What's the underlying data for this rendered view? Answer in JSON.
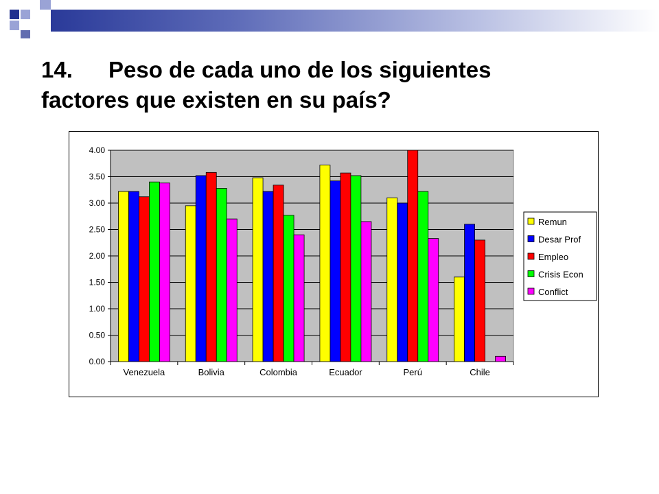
{
  "slide": {
    "title_number": "14.",
    "title_line1": "Peso de cada uno de los siguientes",
    "title_line2": "factores que existen en su país?"
  },
  "colors": {
    "accent_dark": "#1f2f8f",
    "accent_light": "#9aa3d6",
    "plot_background": "#c0c0c0"
  },
  "chart_data": {
    "type": "bar",
    "categories": [
      "Venezuela",
      "Bolivia",
      "Colombia",
      "Ecuador",
      "Perú",
      "Chile"
    ],
    "series": [
      {
        "name": "Remun",
        "color": "#ffff00",
        "values": [
          3.22,
          2.95,
          3.48,
          3.72,
          3.1,
          1.6
        ]
      },
      {
        "name": "Desar Prof",
        "color": "#0000ff",
        "values": [
          3.22,
          3.52,
          3.22,
          3.42,
          3.0,
          2.6
        ]
      },
      {
        "name": "Empleo",
        "color": "#ff0000",
        "values": [
          3.12,
          3.58,
          3.34,
          3.57,
          4.0,
          2.3
        ]
      },
      {
        "name": "Crisis Econ",
        "color": "#00ff00",
        "values": [
          3.4,
          3.28,
          2.77,
          3.52,
          3.22,
          null
        ]
      },
      {
        "name": "Conflict",
        "color": "#ff00ff",
        "values": [
          3.38,
          2.7,
          2.4,
          2.65,
          2.33,
          0.1
        ]
      }
    ],
    "yticks": [
      "0.00",
      "0.50",
      "1.00",
      "1.50",
      "2.00",
      "2.50",
      "3.00",
      "3.50",
      "4.00"
    ],
    "ylim": [
      0,
      4
    ],
    "grid": true,
    "legend_position": "right",
    "title": "",
    "xlabel": "",
    "ylabel": ""
  }
}
